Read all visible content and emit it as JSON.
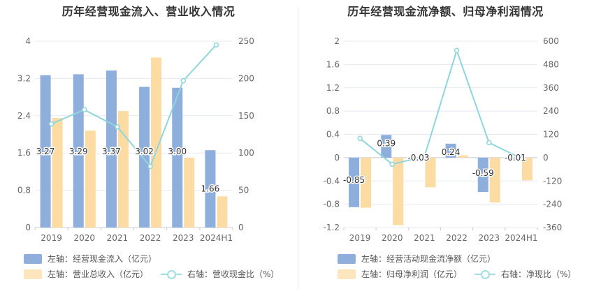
{
  "colors": {
    "blue": "#8eaedc",
    "orange": "#fddca3",
    "line": "#8fd6dc",
    "grid": "#e6e9f2",
    "axis_text": "#666666"
  },
  "chart_data": [
    {
      "type": "bar",
      "title": "历年经营现金流入、营业收入情况",
      "categories": [
        "2019",
        "2020",
        "2021",
        "2022",
        "2023",
        "2024H1"
      ],
      "left_axis": {
        "ticks": [
          "0",
          "0.8",
          "1.6",
          "2.4",
          "3.2",
          "4"
        ],
        "range": [
          0,
          4
        ]
      },
      "right_axis": {
        "ticks": [
          "0",
          "50",
          "100",
          "150",
          "200",
          "250"
        ],
        "range": [
          0,
          250
        ]
      },
      "series": [
        {
          "name": "左轴：经营现金流入（亿元）",
          "axis": "left",
          "kind": "bar",
          "color": "#8eaedc",
          "values": [
            3.27,
            3.29,
            3.37,
            3.02,
            3.0,
            1.66
          ],
          "labels": [
            "3.27",
            "3.29",
            "3.37",
            "3.02",
            "3.00",
            "1.66"
          ]
        },
        {
          "name": "左轴：营业总收入（亿元）",
          "axis": "left",
          "kind": "bar",
          "color": "#fddca3",
          "values": [
            2.35,
            2.08,
            2.5,
            3.65,
            1.5,
            0.67
          ]
        },
        {
          "name": "右轴：营收现金比（%）",
          "axis": "right",
          "kind": "line",
          "color": "#8fd6dc",
          "values": [
            139,
            158,
            135,
            82,
            197,
            245
          ]
        }
      ]
    },
    {
      "type": "bar",
      "title": "历年经营现金流净额、归母净利润情况",
      "categories": [
        "2019",
        "2020",
        "2021",
        "2022",
        "2023",
        "2024H1"
      ],
      "left_axis": {
        "ticks": [
          "-1.2",
          "-0.8",
          "-0.4",
          "0",
          "0.4",
          "0.8",
          "1.2",
          "1.6",
          "2"
        ],
        "range": [
          -1.2,
          2
        ]
      },
      "right_axis": {
        "ticks": [
          "-360",
          "-240",
          "-120",
          "0",
          "120",
          "240",
          "360",
          "480",
          "600"
        ],
        "range": [
          -360,
          600
        ]
      },
      "series": [
        {
          "name": "左轴：经营活动现金流净额（亿元）",
          "axis": "left",
          "kind": "bar",
          "color": "#8eaedc",
          "values": [
            -0.85,
            0.39,
            -0.03,
            0.24,
            -0.59,
            -0.01
          ],
          "labels": [
            "-0.85",
            "0.39",
            "-0.03",
            "0.24",
            "-0.59",
            "-0.01"
          ]
        },
        {
          "name": "左轴：归母净利润（亿元）",
          "axis": "left",
          "kind": "bar",
          "color": "#fddca3",
          "values": [
            -0.86,
            -1.16,
            -0.51,
            0.04,
            -0.77,
            -0.39
          ]
        },
        {
          "name": "右轴：净现比（%）",
          "axis": "right",
          "kind": "line",
          "color": "#8fd6dc",
          "values": [
            99,
            -34,
            6,
            552,
            77,
            -4
          ]
        }
      ]
    }
  ]
}
